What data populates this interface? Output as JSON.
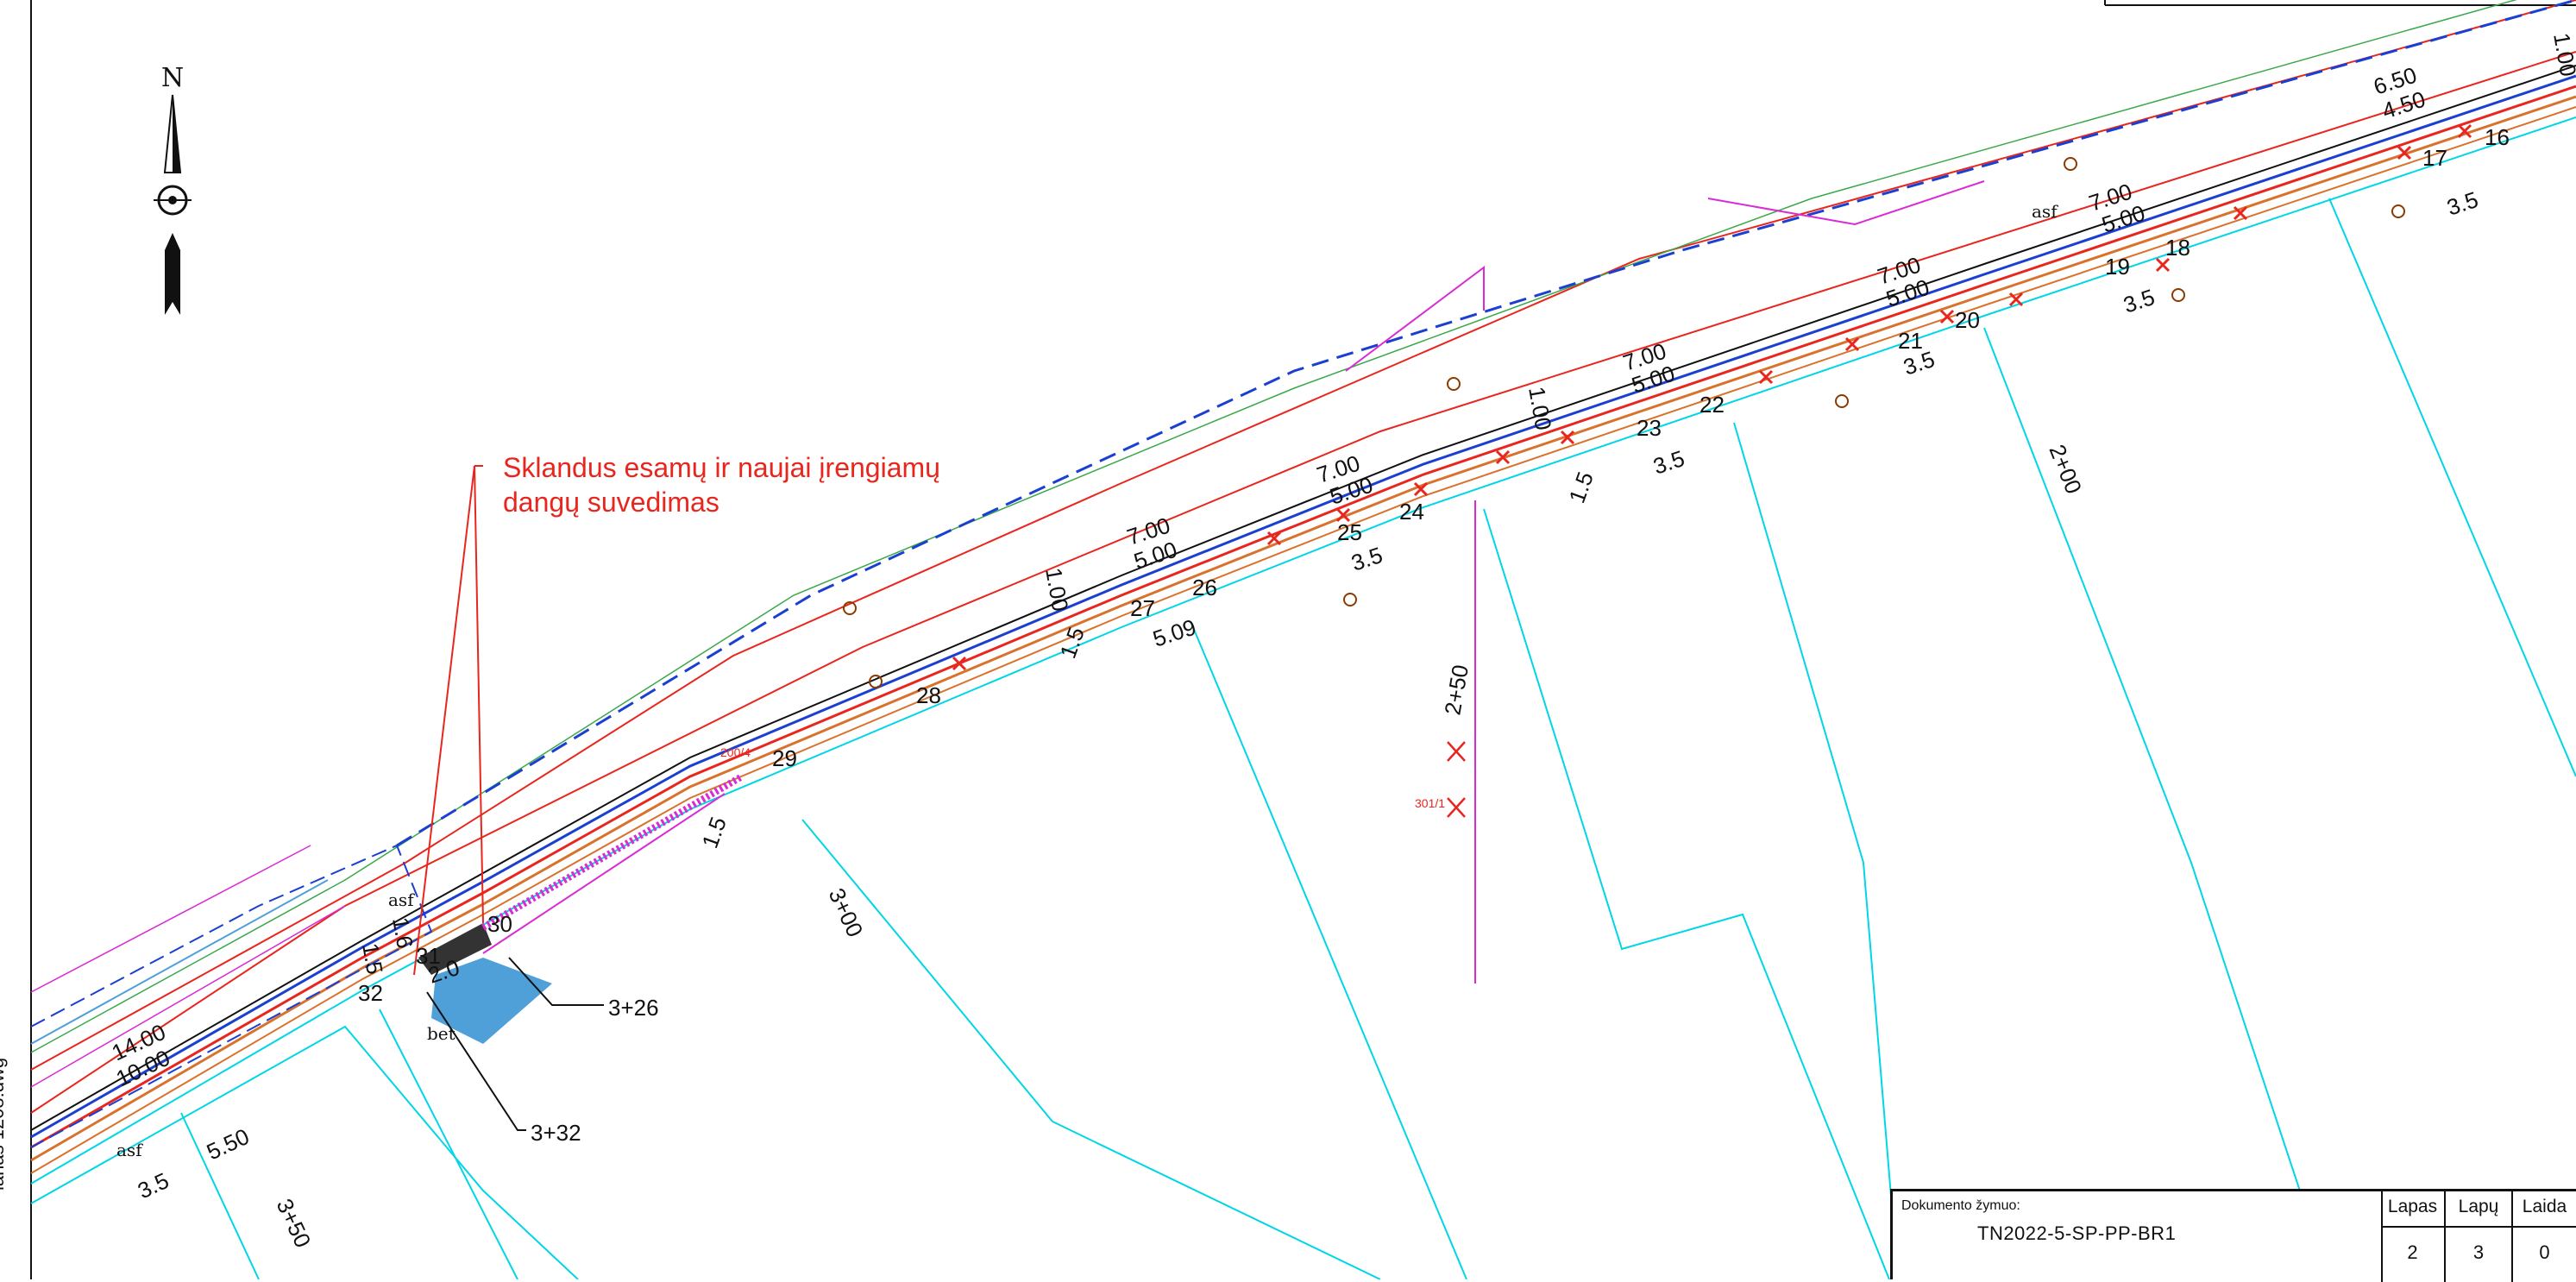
{
  "annotation": {
    "line1": "Sklandus esamų ir naujai įrengiamų",
    "line2": "dangų suvedimas"
  },
  "north_label": "N",
  "side_filename": "lanas 1208.dwg",
  "title_block": {
    "doc_label": "Dokumento žymuo:",
    "doc_value": "TN2022-5-SP-PP-BR1",
    "lapas_label": "Lapas",
    "lapas_value": "2",
    "lapu_label": "Lapų",
    "lapu_value": "3",
    "laida_label": "Laida",
    "laida_value": "0"
  },
  "chainage": {
    "c200": "2+00",
    "c250": "2+50",
    "c300": "3+00",
    "c326": "3+26",
    "c332": "3+32",
    "c350": "3+50"
  },
  "point_labels": [
    "16",
    "17",
    "18",
    "19",
    "20",
    "21",
    "22",
    "23",
    "24",
    "25",
    "26",
    "27",
    "28",
    "29",
    "30",
    "31",
    "32"
  ],
  "dims": {
    "d700": "7.00",
    "d500": "5.00",
    "d650": "6.50",
    "d450": "4.50",
    "d35": "3.5",
    "d100": "1.00",
    "d15": "1.5",
    "d1400": "14.00",
    "d1000": "10.00",
    "d550": "5.50",
    "d16": "1.6",
    "d20": "2.0",
    "d509": "5.09"
  },
  "surface": {
    "asf": "asf",
    "bet": "bet"
  },
  "pole_labels": {
    "p2004": "200/4",
    "p3011": "301/1"
  },
  "colors": {
    "red": "#e8261e",
    "cyan": "#00d6e6",
    "blue": "#1a3fd1",
    "orange": "#d9722c",
    "magenta": "#d92bd4",
    "green": "#3aa84a",
    "fill": "#4f9fd9"
  }
}
